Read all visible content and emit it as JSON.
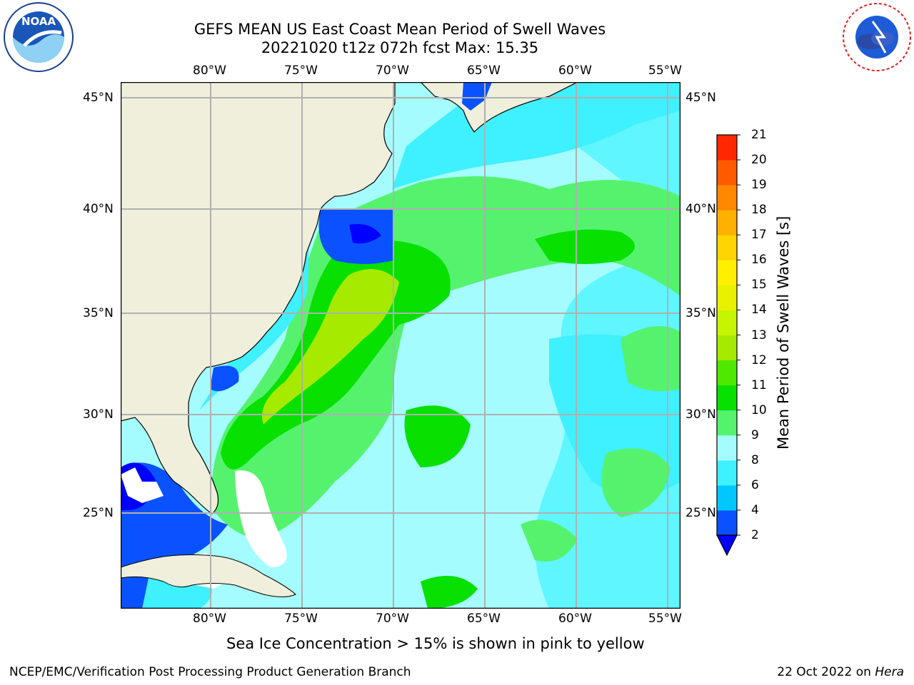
{
  "header": {
    "title_line1": "GEFS MEAN US East Coast Mean Period of Swell Waves",
    "title_line2": "20221020 t12z 072h fcst   Max: 15.35"
  },
  "logos": {
    "left": "NOAA",
    "left_ring_text": "NATIONAL OCEANIC AND ATMOSPHERIC ADMINISTRATION · U.S. DEPARTMENT OF COMMERCE",
    "right_ring_text": "NATIONAL WEATHER SERVICE"
  },
  "map": {
    "lon_labels": [
      "80°W",
      "75°W",
      "70°W",
      "65°W",
      "60°W",
      "55°W"
    ],
    "lat_labels": [
      "45°N",
      "40°N",
      "35°N",
      "30°N",
      "25°N"
    ]
  },
  "colorbar": {
    "label": "Mean Period of Swell Waves [s]",
    "ticks": [
      "2",
      "4",
      "6",
      "8",
      "9",
      "10",
      "11",
      "12",
      "13",
      "14",
      "15",
      "16",
      "17",
      "18",
      "19",
      "20",
      "21"
    ],
    "colors": [
      "#0a52ff",
      "#00c8ff",
      "#3ff0ff",
      "#a5fcff",
      "#55f26e",
      "#08e000",
      "#4fe800",
      "#a6ea00",
      "#c6f500",
      "#e9f000",
      "#fff000",
      "#ffd400",
      "#ffb000",
      "#ff8800",
      "#ff5a00",
      "#ff2800",
      "#ff0000"
    ],
    "under_color": "#0000ff"
  },
  "note": "Sea Ice Concentration > 15% is shown in pink to yellow",
  "footer": {
    "left": "NCEP/EMC/Verification Post Processing Product Generation Branch",
    "right_date": "22 Oct 2022 on ",
    "right_host": "Hera"
  }
}
